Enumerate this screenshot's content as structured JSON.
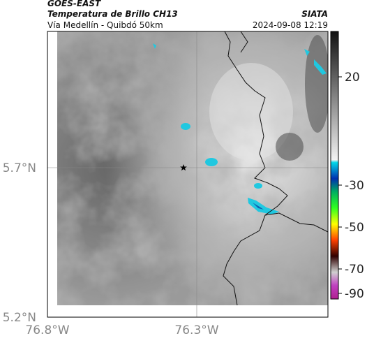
{
  "header": {
    "source": "GOES-EAST",
    "title": "Temperatura de Brillo CH13",
    "subtitle": "Vía Medellín - Quibdó 50km",
    "agency": "SIATA",
    "datetime": "2024-09-08 12:19"
  },
  "map": {
    "lat_ticks": [
      "5.7°N",
      "5.2°N"
    ],
    "lon_ticks": [
      "76.8°W",
      "76.3°W"
    ]
  },
  "colorbar": {
    "ticks": [
      "20",
      "-30",
      "-50",
      "-70",
      "-90"
    ]
  }
}
